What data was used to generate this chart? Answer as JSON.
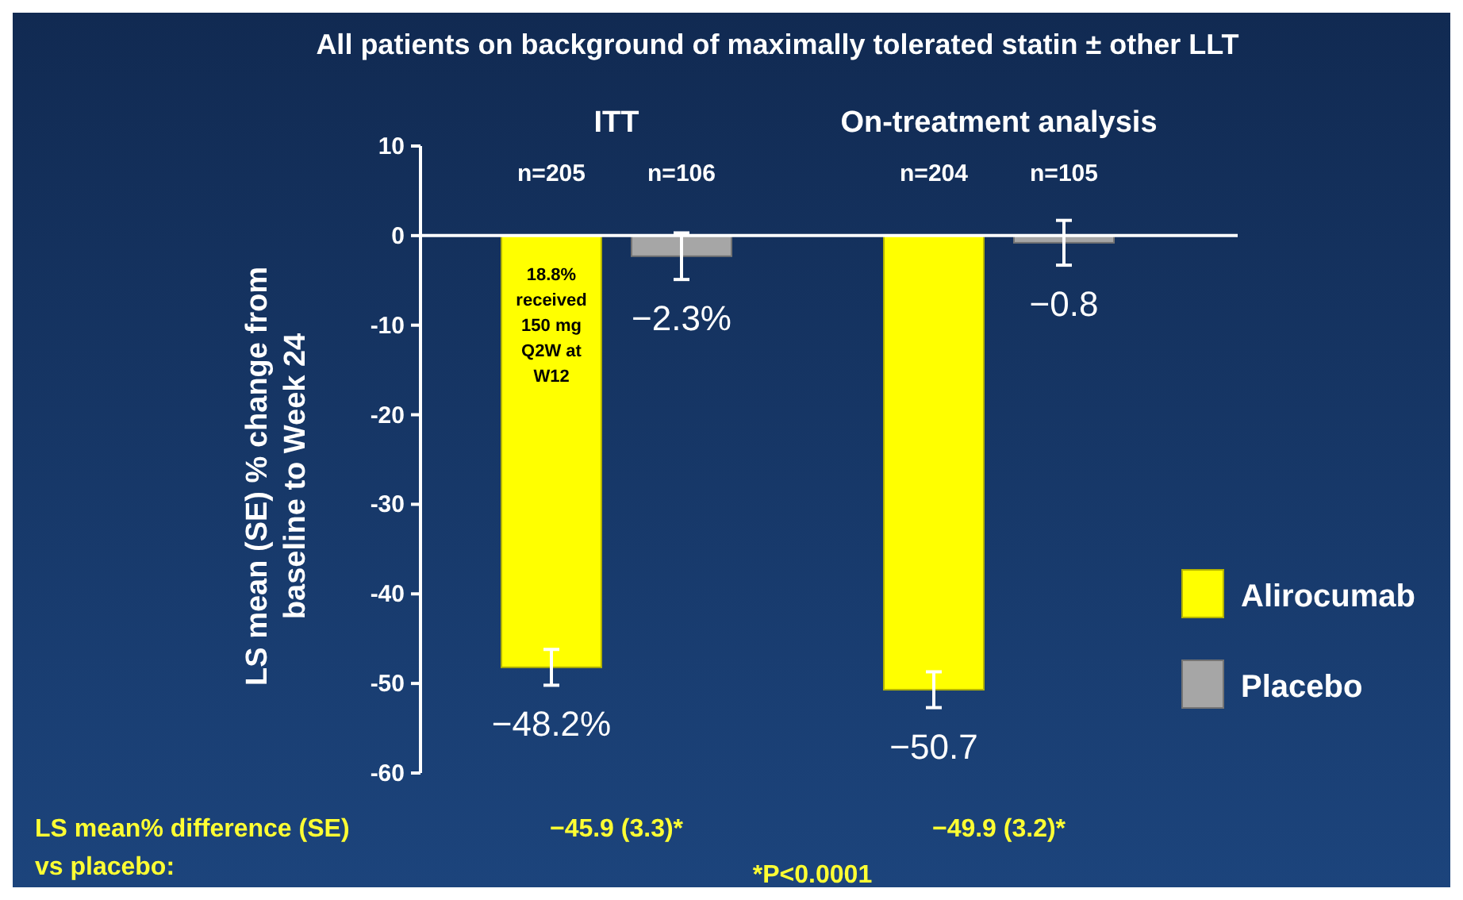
{
  "chart_data": {
    "type": "bar",
    "title": "All patients on background of maximally tolerated statin ± other LLT",
    "ylabel": "LS mean (SE) % change from baseline to Week 24",
    "categories": [
      "ITT",
      "On-treatment analysis"
    ],
    "series": [
      {
        "name": "Alirocumab",
        "color": "#ffff00",
        "values": [
          -48.2,
          -50.7
        ],
        "errors": [
          2,
          2
        ],
        "value_labels": [
          "−48.2%",
          "−50.7"
        ]
      },
      {
        "name": "Placebo",
        "color": "#a6a6a6",
        "values": [
          -2.3,
          -0.8
        ],
        "errors": [
          2.6,
          2.5
        ],
        "value_labels": [
          "−2.3%",
          "−0.8"
        ]
      }
    ],
    "ylim": [
      -60,
      10
    ],
    "yticks": [
      -60,
      -50,
      -40,
      -30,
      -20,
      -10,
      0,
      10
    ],
    "legend": "right",
    "annotations": [
      "n=205",
      "n=106",
      "n=204",
      "n=105",
      "18.8% received 150 mg Q2W at W12",
      "LS mean% difference (SE) vs placebo:",
      "−45.9 (3.3)*",
      "−49.9 (3.2)*",
      "*P<0.0001"
    ]
  }
}
